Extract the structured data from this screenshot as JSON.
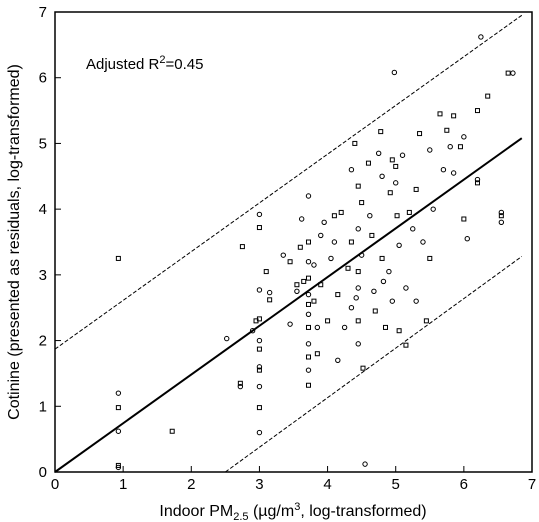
{
  "chart_data": {
    "type": "scatter",
    "xlabel": {
      "prefix": "Indoor PM",
      "sub": "2.5",
      "mid": " (µg/m",
      "sup": "3",
      "suffix": ", log-transformed)"
    },
    "ylabel": "Cotinine (presented as residuals, log-transformed)",
    "annotation": {
      "prefix": "Adjusted R",
      "sup": "2",
      "suffix": "=0.45"
    },
    "xlim": [
      0,
      7
    ],
    "ylim": [
      0,
      7
    ],
    "xticks": [
      "0",
      "1",
      "2",
      "3",
      "4",
      "5",
      "6",
      "7"
    ],
    "yticks": [
      "0",
      "1",
      "2",
      "3",
      "4",
      "5",
      "6",
      "7"
    ],
    "grid": false,
    "lines": [
      {
        "role": "regression",
        "style": "solid",
        "points": [
          [
            0,
            0
          ],
          [
            6.85,
            5.08
          ]
        ]
      },
      {
        "role": "upper-prediction",
        "style": "dashed",
        "points": [
          [
            0,
            1.87
          ],
          [
            6.85,
            6.95
          ]
        ]
      },
      {
        "role": "lower-prediction",
        "style": "dashed",
        "points": [
          [
            2.5,
            0
          ],
          [
            6.85,
            3.28
          ]
        ]
      }
    ],
    "points": [
      [
        0.93,
        3.25
      ],
      [
        0.93,
        1.2
      ],
      [
        0.93,
        0.98
      ],
      [
        0.93,
        0.62
      ],
      [
        0.93,
        0.1
      ],
      [
        0.93,
        0.07
      ],
      [
        1.72,
        0.62
      ],
      [
        2.52,
        2.03
      ],
      [
        2.72,
        1.35
      ],
      [
        2.72,
        1.3
      ],
      [
        2.75,
        3.43
      ],
      [
        2.9,
        2.15
      ],
      [
        2.95,
        2.3
      ],
      [
        3.0,
        3.92
      ],
      [
        3.0,
        3.72
      ],
      [
        3.0,
        2.77
      ],
      [
        3.0,
        2.33
      ],
      [
        3.0,
        2.0
      ],
      [
        3.0,
        1.87
      ],
      [
        3.0,
        1.6
      ],
      [
        3.0,
        1.55
      ],
      [
        3.0,
        1.3
      ],
      [
        3.0,
        0.98
      ],
      [
        3.0,
        0.6
      ],
      [
        3.1,
        3.05
      ],
      [
        3.15,
        2.73
      ],
      [
        3.15,
        2.62
      ],
      [
        3.35,
        3.3
      ],
      [
        3.45,
        3.2
      ],
      [
        3.45,
        2.25
      ],
      [
        3.55,
        2.85
      ],
      [
        3.55,
        2.75
      ],
      [
        3.6,
        3.42
      ],
      [
        3.62,
        3.85
      ],
      [
        3.65,
        2.9
      ],
      [
        3.72,
        4.2
      ],
      [
        3.72,
        3.5
      ],
      [
        3.72,
        3.2
      ],
      [
        3.72,
        2.95
      ],
      [
        3.72,
        2.7
      ],
      [
        3.72,
        2.55
      ],
      [
        3.72,
        2.4
      ],
      [
        3.72,
        2.2
      ],
      [
        3.72,
        1.95
      ],
      [
        3.72,
        1.75
      ],
      [
        3.72,
        1.55
      ],
      [
        3.72,
        1.32
      ],
      [
        3.8,
        3.15
      ],
      [
        3.8,
        2.6
      ],
      [
        3.85,
        2.2
      ],
      [
        3.85,
        1.8
      ],
      [
        3.9,
        3.6
      ],
      [
        3.9,
        2.85
      ],
      [
        3.95,
        3.8
      ],
      [
        4.0,
        2.3
      ],
      [
        4.05,
        3.25
      ],
      [
        4.1,
        3.9
      ],
      [
        4.1,
        3.5
      ],
      [
        4.15,
        2.7
      ],
      [
        4.15,
        1.7
      ],
      [
        4.2,
        3.95
      ],
      [
        4.25,
        2.2
      ],
      [
        4.3,
        3.1
      ],
      [
        4.35,
        4.6
      ],
      [
        4.35,
        3.5
      ],
      [
        4.35,
        2.5
      ],
      [
        4.4,
        5.0
      ],
      [
        4.42,
        2.65
      ],
      [
        4.45,
        4.35
      ],
      [
        4.45,
        3.7
      ],
      [
        4.45,
        3.05
      ],
      [
        4.45,
        2.8
      ],
      [
        4.45,
        2.3
      ],
      [
        4.45,
        1.95
      ],
      [
        4.5,
        4.1
      ],
      [
        4.5,
        3.3
      ],
      [
        4.52,
        1.58
      ],
      [
        4.55,
        0.12
      ],
      [
        4.6,
        4.7
      ],
      [
        4.62,
        3.9
      ],
      [
        4.65,
        3.6
      ],
      [
        4.68,
        2.75
      ],
      [
        4.7,
        2.45
      ],
      [
        4.75,
        4.85
      ],
      [
        4.78,
        5.18
      ],
      [
        4.8,
        4.5
      ],
      [
        4.8,
        3.25
      ],
      [
        4.82,
        2.9
      ],
      [
        4.85,
        2.2
      ],
      [
        4.9,
        3.05
      ],
      [
        4.92,
        4.25
      ],
      [
        4.95,
        2.6
      ],
      [
        4.95,
        4.75
      ],
      [
        4.98,
        6.08
      ],
      [
        5.0,
        4.65
      ],
      [
        5.0,
        4.4
      ],
      [
        5.02,
        3.9
      ],
      [
        5.05,
        3.45
      ],
      [
        5.05,
        2.15
      ],
      [
        5.1,
        4.82
      ],
      [
        5.15,
        1.93
      ],
      [
        5.15,
        2.8
      ],
      [
        5.2,
        3.95
      ],
      [
        5.25,
        3.7
      ],
      [
        5.3,
        4.3
      ],
      [
        5.3,
        2.6
      ],
      [
        5.35,
        5.15
      ],
      [
        5.4,
        3.5
      ],
      [
        5.45,
        2.3
      ],
      [
        5.5,
        4.9
      ],
      [
        5.5,
        3.25
      ],
      [
        5.55,
        4.0
      ],
      [
        5.65,
        5.45
      ],
      [
        5.7,
        4.6
      ],
      [
        5.75,
        5.2
      ],
      [
        5.8,
        4.95
      ],
      [
        5.85,
        5.42
      ],
      [
        5.85,
        4.55
      ],
      [
        5.95,
        4.95
      ],
      [
        6.0,
        5.1
      ],
      [
        6.0,
        3.85
      ],
      [
        6.05,
        3.55
      ],
      [
        6.2,
        5.5
      ],
      [
        6.2,
        4.45
      ],
      [
        6.2,
        4.4
      ],
      [
        6.25,
        6.62
      ],
      [
        6.35,
        5.72
      ],
      [
        6.55,
        3.95
      ],
      [
        6.55,
        3.9
      ],
      [
        6.55,
        3.8
      ],
      [
        6.65,
        6.07
      ],
      [
        6.72,
        6.07
      ]
    ]
  }
}
